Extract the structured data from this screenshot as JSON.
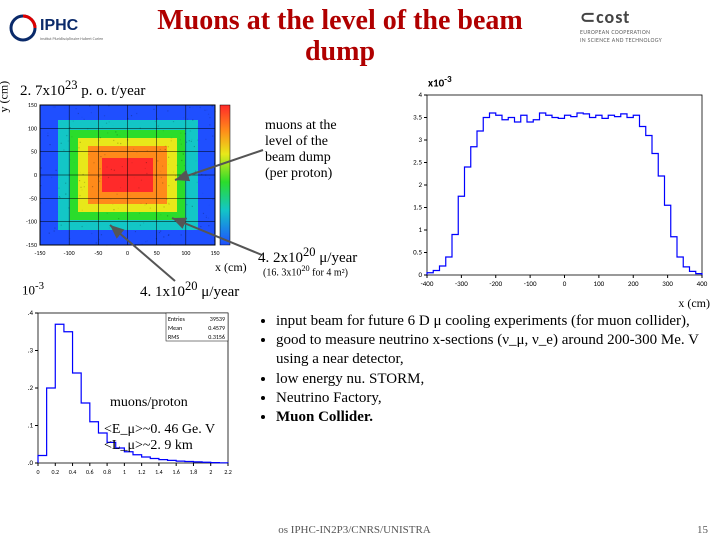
{
  "title": "Muons at the level of the beam dump",
  "subtitle_val": "2. 7x10",
  "subtitle_exp": "23",
  "subtitle_unit": " p. o. t/year",
  "y_label": "y (cm)",
  "x_label": "x (cm)",
  "ten3": "10",
  "ten3_exp": "-3",
  "x10": "x10",
  "x10_exp": "-3",
  "ann1": "muons at the<br>level of the<br>beam dump<br>(per proton)",
  "mu1_val": "4. 2x10",
  "mu1_exp": "20",
  "mu1_unit": " μ/year",
  "mu1_sub": "(16. 3x10",
  "mu1_sub_exp": "20",
  "mu1_sub_tail": " for 4 m²)",
  "mu2_val": "4. 1x10",
  "mu2_exp": "20",
  "mu2_unit": " μ/year",
  "muons_proton": "muons/proton",
  "e_line": "<E_μ>~0. 46 Ge. V",
  "l_line": "<L_μ>~2. 9 km",
  "bullets": [
    "input beam for future 6 D μ cooling experiments (for muon collider),",
    "good to measure neutrino x-sections (ν_μ, ν_e) around 200-300 Me. V using a near detector,",
    "low energy nu. STORM,",
    "Neutrino Factory,",
    "<b>Muon Collider.</b>"
  ],
  "footer_c": "os IPHC-IN2P3/CNRS/UNISTRA",
  "footer_r": "15",
  "iphc_logo_text": "IPHC",
  "cost_logo_brand": "⊂cost",
  "cost_logo_tag": "EUROPEAN COOPERATION<br>IN SCIENCE AND TECHNOLOGY",
  "heatmap": {
    "type": "heatmap",
    "xlim": [
      -150,
      150
    ],
    "ylim": [
      -150,
      150
    ],
    "grid_step": 50,
    "colors": {
      "outer": "#1f4fff",
      "mid1": "#13c6c6",
      "mid2": "#2bdc2b",
      "mid3": "#e8e81a",
      "inner": "#ff8a1a",
      "core": "#ff2a2a",
      "bg": "#ffffff",
      "axis": "#000000"
    }
  },
  "histL": {
    "type": "histogram",
    "color": "#0000ff",
    "bg": "#ffffff",
    "axis": "#000000",
    "xlim": [
      0,
      2.2
    ],
    "ylim": [
      0,
      0.4
    ],
    "xticks": [
      0,
      0.2,
      0.4,
      0.6,
      0.8,
      1,
      1.2,
      1.4,
      1.6,
      1.8,
      2,
      2.2
    ],
    "values": [
      0.02,
      0.2,
      0.37,
      0.35,
      0.24,
      0.16,
      0.11,
      0.08,
      0.055,
      0.04,
      0.03,
      0.022,
      0.016,
      0.012,
      0.009,
      0.007,
      0.005,
      0.004,
      0.003,
      0.002,
      0.001,
      0.0005
    ],
    "stats": {
      "Entries": "39539",
      "Mean": "0.4579",
      "RMS": "0.3156"
    }
  },
  "histR": {
    "type": "histogram",
    "color": "#0000ff",
    "bg": "#ffffff",
    "axis": "#000000",
    "xlim": [
      -400,
      400
    ],
    "ylim": [
      0,
      0.004
    ],
    "yticks": [
      0,
      0.5,
      1,
      1.5,
      2,
      2.5,
      3,
      3.5,
      4
    ],
    "xticks": [
      -400,
      -300,
      -200,
      -100,
      0,
      100,
      200,
      300,
      400
    ],
    "values": [
      0.05,
      0.1,
      0.2,
      0.4,
      0.9,
      1.75,
      2.4,
      2.85,
      3.2,
      3.5,
      3.6,
      3.55,
      3.45,
      3.5,
      3.4,
      3.55,
      3.4,
      3.45,
      3.6,
      3.55,
      3.5,
      3.48,
      3.55,
      3.52,
      3.6,
      3.58,
      3.5,
      3.55,
      3.48,
      3.55,
      3.52,
      3.58,
      3.5,
      3.55,
      3.3,
      3.1,
      2.7,
      2.2,
      1.55,
      0.85,
      0.4,
      0.18,
      0.08,
      0.03
    ]
  }
}
